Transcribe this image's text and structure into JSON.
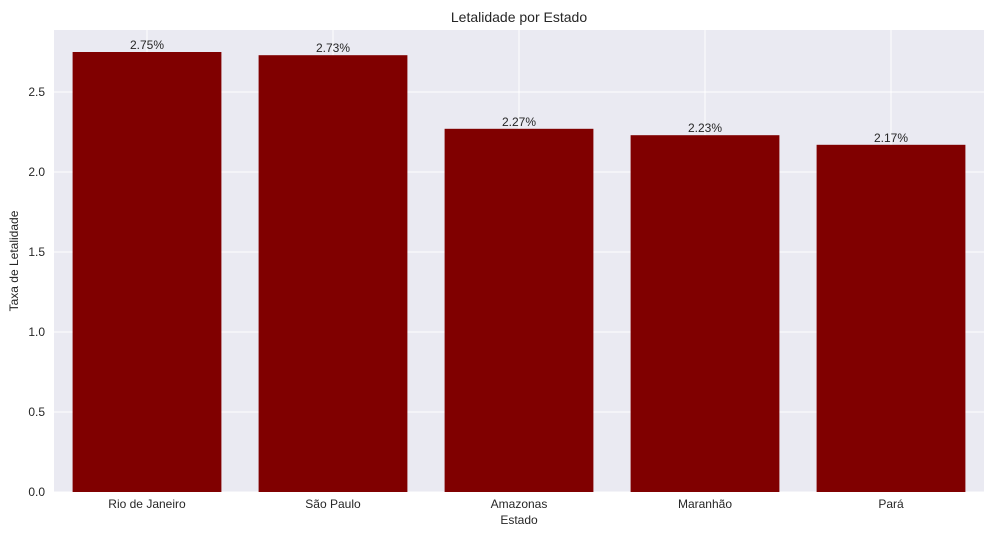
{
  "chart_data": {
    "type": "bar",
    "title": "Letalidade por Estado",
    "xlabel": "Estado",
    "ylabel": "Taxa de Letalidade",
    "categories": [
      "Rio de Janeiro",
      "São Paulo",
      "Amazonas",
      "Maranhão",
      "Pará"
    ],
    "values": [
      2.75,
      2.73,
      2.27,
      2.23,
      2.17
    ],
    "data_labels": [
      "2.75%",
      "2.73%",
      "2.27%",
      "2.23%",
      "2.17%"
    ],
    "yticks": [
      0.0,
      0.5,
      1.0,
      1.5,
      2.0,
      2.5
    ],
    "ytick_labels": [
      "0.0",
      "0.5",
      "1.0",
      "1.5",
      "2.0",
      "2.5"
    ],
    "ylim": [
      0,
      2.8875
    ],
    "grid": true,
    "colors": {
      "bar": "#800000",
      "plot_background": "#eaeaf2",
      "grid": "#ffffff",
      "text": "#262626"
    }
  }
}
